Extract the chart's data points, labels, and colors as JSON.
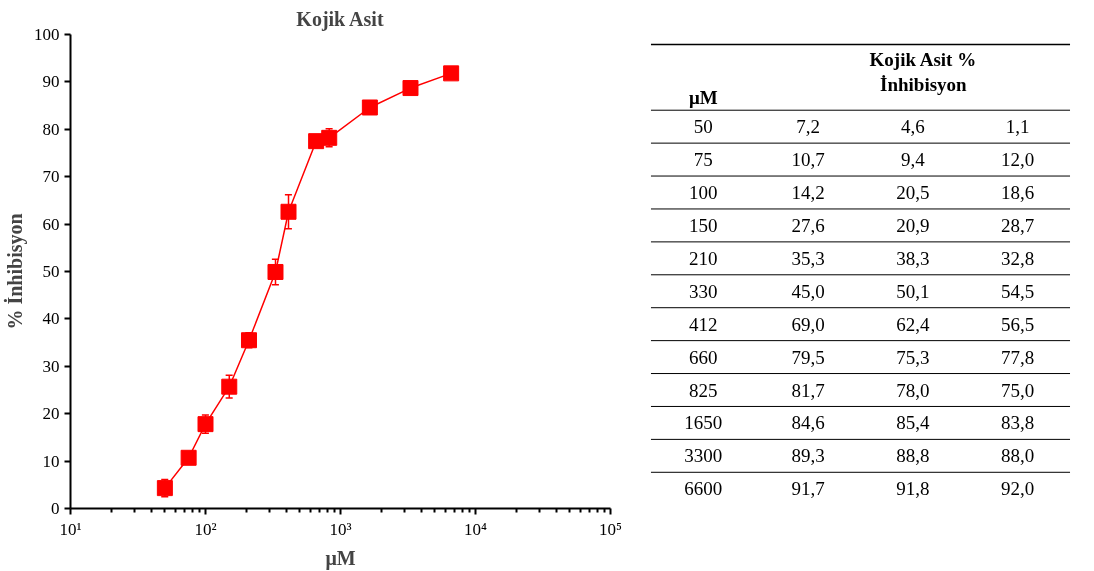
{
  "chart_data": [
    {
      "type": "line",
      "title": "Kojik Asit",
      "xlabel": "μM",
      "ylabel": "% İnhibisyon",
      "log": "x",
      "marker": "square",
      "line_style": "solid",
      "grid": false,
      "x": [
        50,
        75,
        100,
        150,
        210,
        330,
        412,
        660,
        825,
        1650,
        3300,
        6600
      ],
      "series": [
        {
          "color": "#ff0000",
          "values": [
            4.3,
            10.7,
            17.8,
            25.7,
            35.5,
            49.9,
            62.6,
            77.5,
            78.2,
            84.6,
            88.7,
            91.8
          ],
          "errors": [
            1.8,
            0.8,
            1.9,
            2.4,
            1.6,
            2.7,
            3.6,
            1.2,
            1.9,
            0.5,
            0.4,
            0.1
          ]
        }
      ],
      "xlim": [
        10,
        100000
      ],
      "xticks": [
        {
          "value": 10,
          "label": "10¹"
        },
        {
          "value": 100,
          "label": "10²"
        },
        {
          "value": 1000,
          "label": "10³"
        },
        {
          "value": 10000,
          "label": "10⁴"
        },
        {
          "value": 100000,
          "label": "10⁵"
        }
      ],
      "ylim": [
        0,
        100
      ],
      "yticks": [
        0,
        10,
        20,
        30,
        40,
        50,
        60,
        70,
        80,
        90,
        100
      ]
    },
    {
      "type": "other",
      "title": "Kojik Asit % İnhibisyon",
      "ylabel": "μM",
      "color": "#ffffff",
      "categories": [
        null,
        null,
        null
      ],
      "y_categories": [
        "50",
        "75",
        "100",
        "150",
        "210",
        "330",
        "412",
        "660",
        "825",
        "1650",
        "3300",
        "6600"
      ],
      "cell_labels": [
        [
          "7,2",
          "4,6",
          "1,1"
        ],
        [
          "10,7",
          "9,4",
          "12,0"
        ],
        [
          "14,2",
          "20,5",
          "18,6"
        ],
        [
          "27,6",
          "20,9",
          "28,7"
        ],
        [
          "35,3",
          "38,3",
          "32,8"
        ],
        [
          "45,0",
          "50,1",
          "54,5"
        ],
        [
          "69,0",
          "62,4",
          "56,5"
        ],
        [
          "79,5",
          "75,3",
          "77,8"
        ],
        [
          "81,7",
          "78,0",
          "75,0"
        ],
        [
          "84,6",
          "85,4",
          "83,8"
        ],
        [
          "89,3",
          "88,8",
          "88,0"
        ],
        [
          "91,7",
          "91,8",
          "92,0"
        ]
      ]
    }
  ]
}
